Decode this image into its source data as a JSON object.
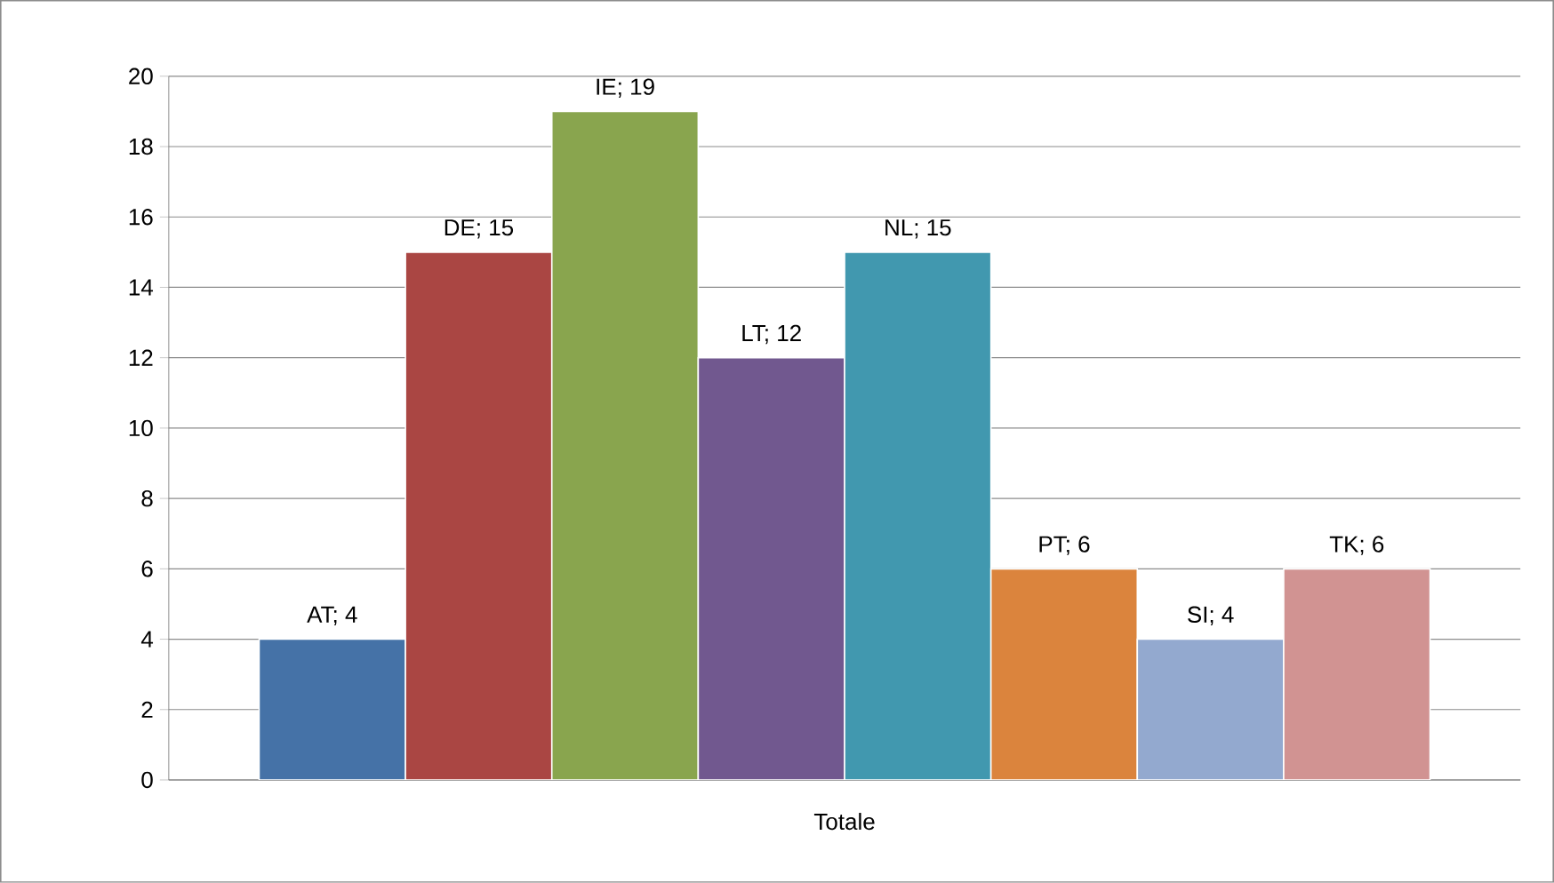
{
  "chart_data": {
    "type": "bar",
    "categories": [
      "Totale"
    ],
    "series": [
      {
        "color": "#4572a7",
        "values": [
          4
        ],
        "value_labels": [
          "AT; 4"
        ]
      },
      {
        "color": "#aa4643",
        "values": [
          15
        ],
        "value_labels": [
          "DE; 15"
        ]
      },
      {
        "color": "#89a54e",
        "values": [
          19
        ],
        "value_labels": [
          "IE; 19"
        ]
      },
      {
        "color": "#71588f",
        "values": [
          12
        ],
        "value_labels": [
          "LT; 12"
        ]
      },
      {
        "color": "#4198af",
        "values": [
          15
        ],
        "value_labels": [
          "NL; 15"
        ]
      },
      {
        "color": "#db843d",
        "values": [
          6
        ],
        "value_labels": [
          "PT; 6"
        ]
      },
      {
        "color": "#93a9cf",
        "values": [
          4
        ],
        "value_labels": [
          "SI; 4"
        ]
      },
      {
        "color": "#d19392",
        "values": [
          6
        ],
        "value_labels": [
          "TK; 6"
        ]
      }
    ],
    "ylim": [
      0,
      20
    ],
    "yticks": [
      0,
      2,
      4,
      6,
      8,
      10,
      12,
      14,
      16,
      18,
      20
    ],
    "grid": "y"
  }
}
